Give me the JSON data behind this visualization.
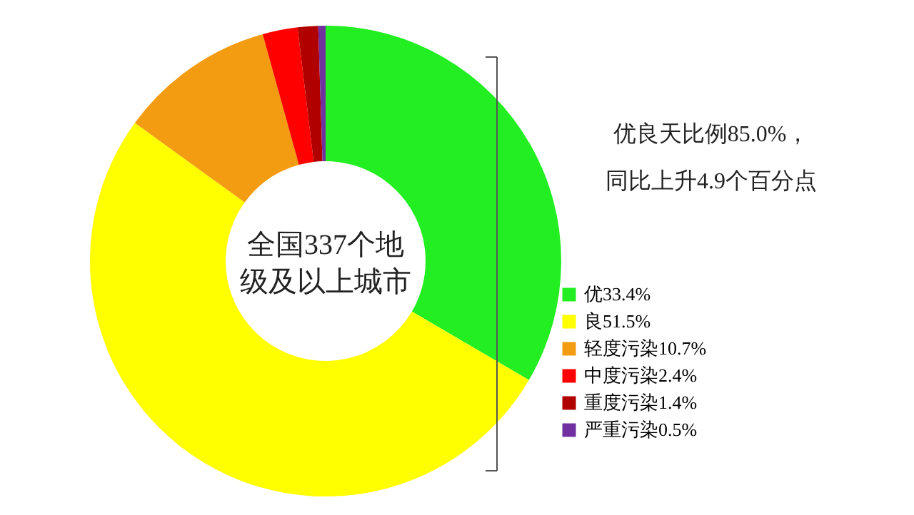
{
  "chart_data": {
    "type": "donut",
    "categories": [
      "优33.4%",
      "良51.5%",
      "轻度污染10.7%",
      "中度污染2.4%",
      "重度污染1.4%",
      "严重污染0.5%"
    ],
    "values": [
      33.4,
      51.5,
      10.7,
      2.4,
      1.4,
      0.5
    ],
    "colors": [
      "#22ee22",
      "#ffff00",
      "#f39c12",
      "#ff0000",
      "#b00000",
      "#7030a0"
    ],
    "annotations": [
      "全国337个地",
      "级及以上城市",
      "优良天比例85.0%，",
      "同比上升4.9个百分点"
    ],
    "legend": "right"
  }
}
